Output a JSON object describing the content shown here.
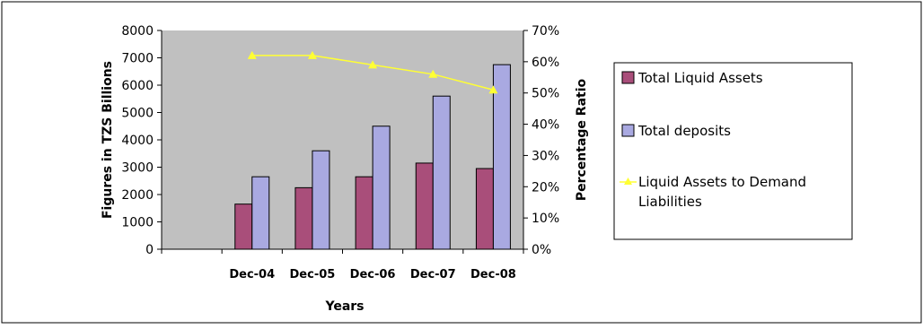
{
  "chart_data": {
    "type": "bar",
    "categories": [
      "",
      "Dec-04",
      "Dec-05",
      "Dec-06",
      "Dec-07",
      "Dec-08"
    ],
    "xlabel": "Years",
    "ylabel": "Figures in TZS Billions",
    "y2label": "Percentage Ratio",
    "ylim": [
      0,
      8000
    ],
    "y2lim": [
      0,
      70
    ],
    "yticks": [
      "0",
      "1000",
      "2000",
      "3000",
      "4000",
      "5000",
      "6000",
      "7000",
      "8000"
    ],
    "y2ticks": [
      "0%",
      "10%",
      "20%",
      "30%",
      "40%",
      "50%",
      "60%",
      "70%"
    ],
    "series": [
      {
        "name": "Total Liquid Assets",
        "kind": "bar",
        "axis": "left",
        "color": "#A94E7A",
        "values": [
          null,
          1650,
          2250,
          2650,
          3150,
          2950
        ]
      },
      {
        "name": "Total deposits",
        "kind": "bar",
        "axis": "left",
        "color": "#A9A9E1",
        "values": [
          null,
          2650,
          3600,
          4500,
          5600,
          6750
        ]
      },
      {
        "name": "Liquid Assets to Demand Liabilities",
        "kind": "line",
        "axis": "right",
        "color": "#FFFF33",
        "values": [
          null,
          62,
          62,
          59,
          56,
          51
        ]
      }
    ],
    "legend": {
      "position": "right",
      "labels": [
        "Total Liquid Assets",
        "Total deposits",
        "Liquid Assets to Demand",
        "Liabilities"
      ]
    },
    "plot_background": "#C0C0C0",
    "grid": false
  }
}
